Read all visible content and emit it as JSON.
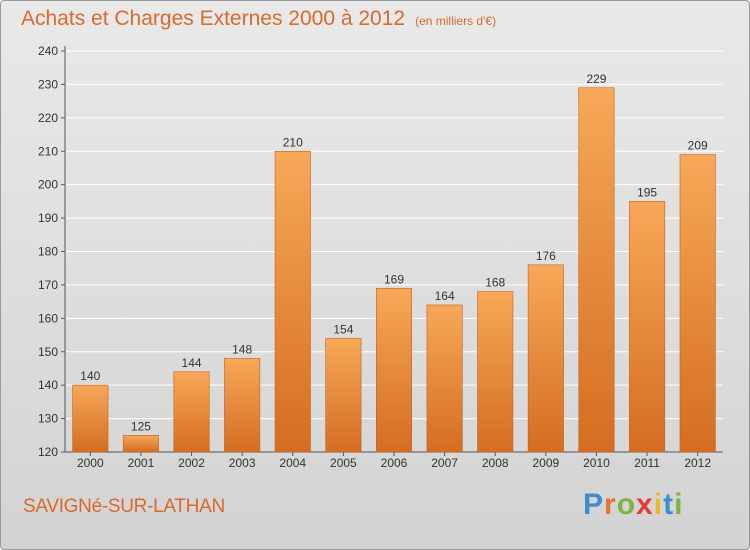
{
  "header": {
    "title": "Achats et Charges Externes 2000 à 2012",
    "subtitle": "(en milliers d'€)"
  },
  "footer": {
    "city": "SAVIGNé-SUR-LATHAN",
    "brand_letters": [
      {
        "char": "P",
        "color": "#3a8fd1"
      },
      {
        "char": "r",
        "color": "#e8732a"
      },
      {
        "char": "o",
        "color": "#7cb342"
      },
      {
        "char": "x",
        "color": "#e23b3b"
      },
      {
        "char": "i",
        "color": "#f2b81f"
      },
      {
        "char": "t",
        "color": "#3a8fd1"
      },
      {
        "char": "i",
        "color": "#7cb342"
      }
    ]
  },
  "chart_data": {
    "type": "bar",
    "categories": [
      "2000",
      "2001",
      "2002",
      "2003",
      "2004",
      "2005",
      "2006",
      "2007",
      "2008",
      "2009",
      "2010",
      "2011",
      "2012"
    ],
    "values": [
      140,
      125,
      144,
      148,
      210,
      154,
      169,
      164,
      168,
      176,
      229,
      195,
      209
    ],
    "ylim": [
      120,
      240
    ],
    "yticks": [
      120,
      130,
      140,
      150,
      160,
      170,
      180,
      190,
      200,
      210,
      220,
      230,
      240
    ],
    "grid": true,
    "bar_color": "#e8843a",
    "bar_highlight": "#f7a858"
  }
}
